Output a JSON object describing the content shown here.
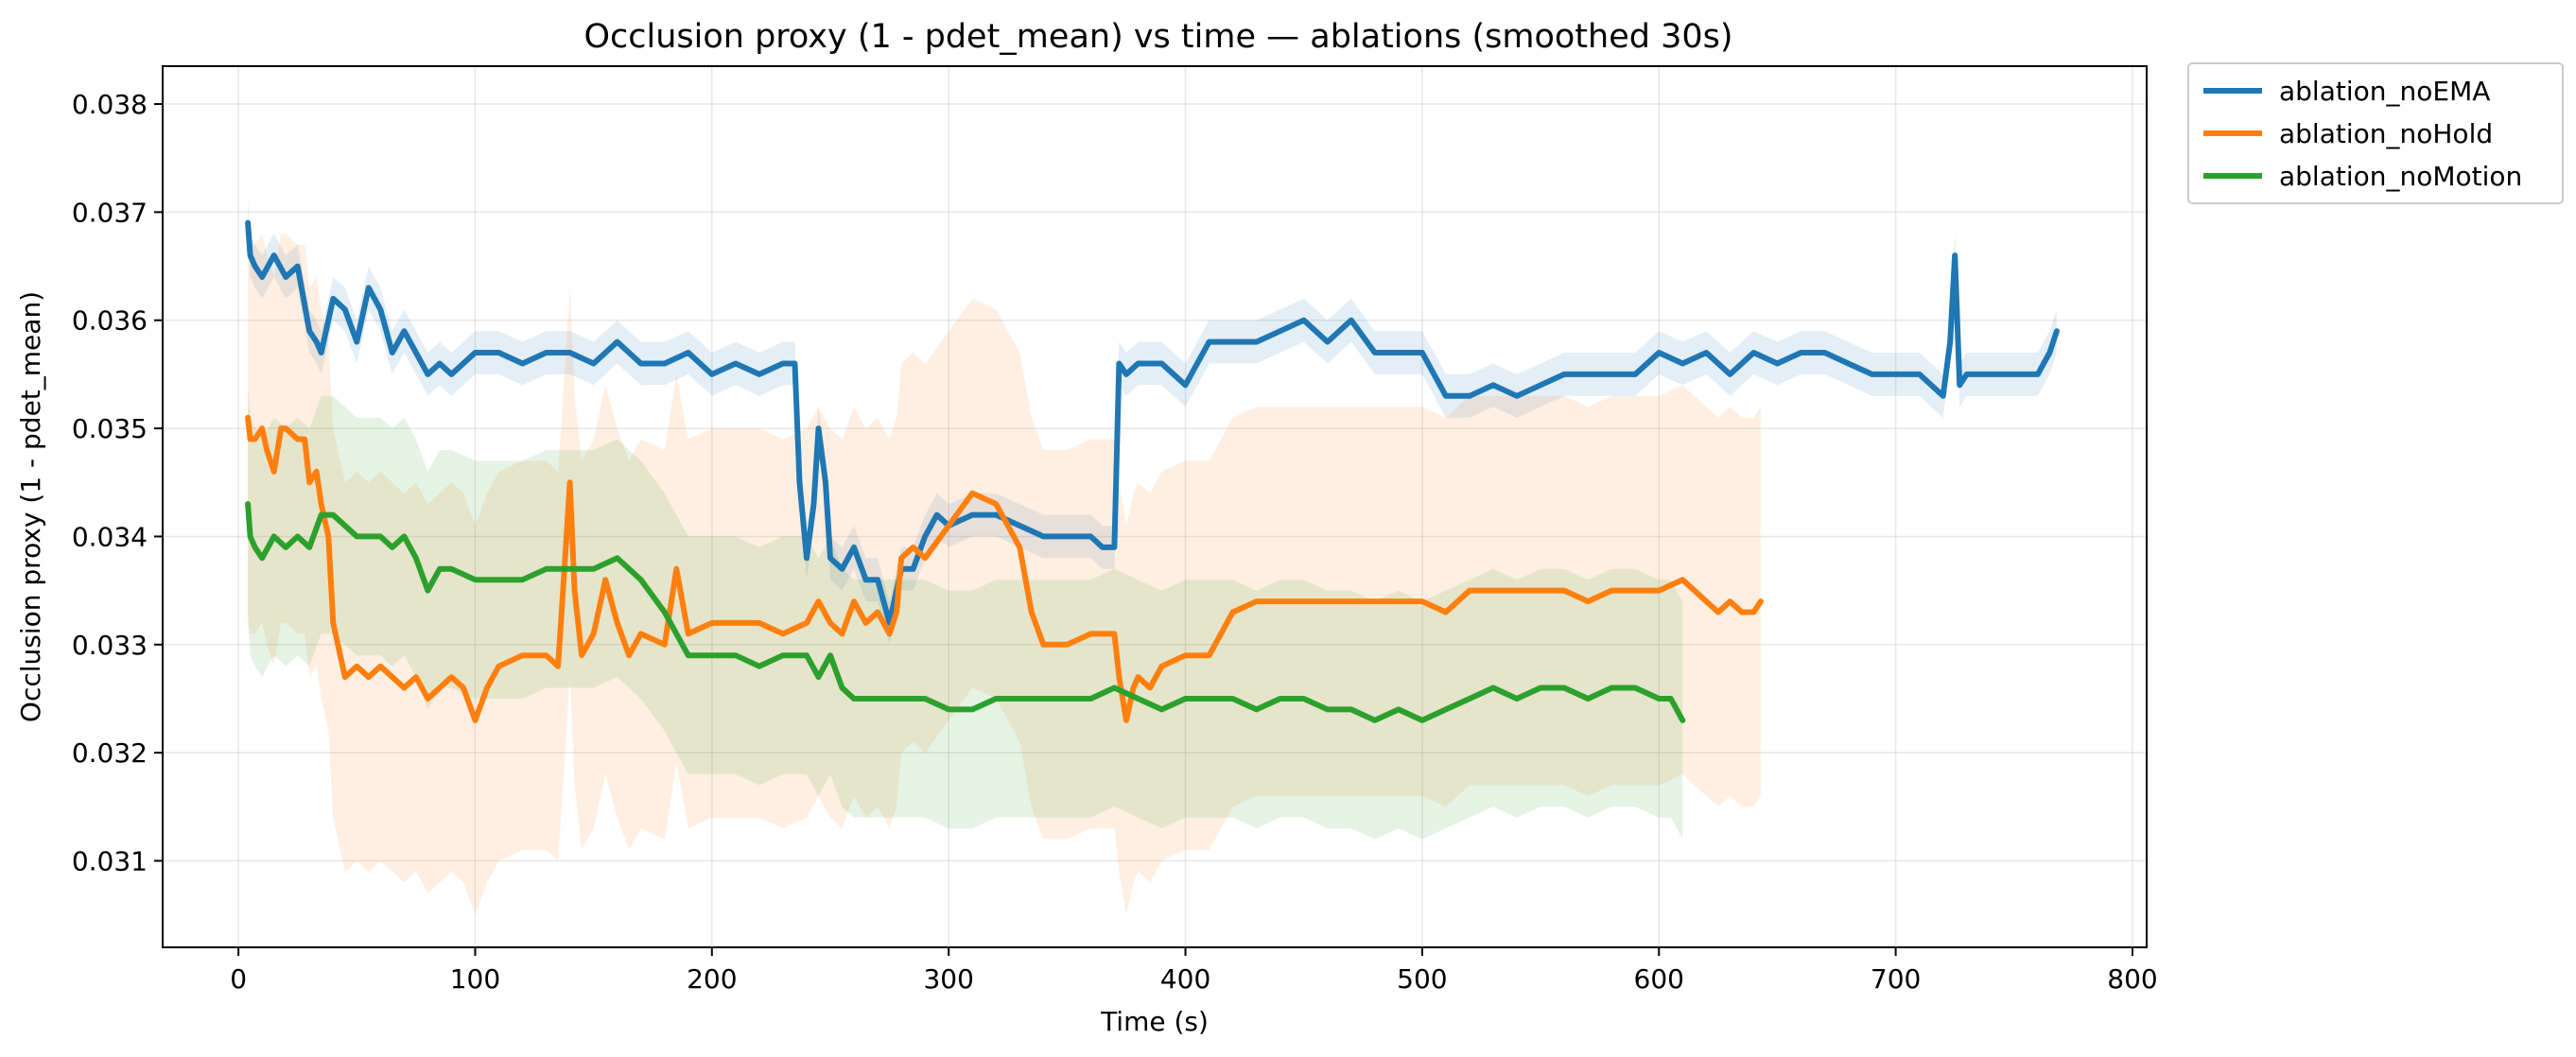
{
  "chart_data": {
    "type": "line",
    "title": "Occlusion proxy (1 - pdet_mean) vs time — ablations (smoothed 30s)",
    "xlabel": "Time (s)",
    "ylabel": "Occlusion proxy (1 - pdet_mean)",
    "xlim": [
      -32,
      806
    ],
    "ylim": [
      0.0302,
      0.03835
    ],
    "xticks": [
      0,
      100,
      200,
      300,
      400,
      500,
      600,
      700,
      800
    ],
    "xtick_labels": [
      "0",
      "100",
      "200",
      "300",
      "400",
      "500",
      "600",
      "700",
      "800"
    ],
    "yticks": [
      0.031,
      0.032,
      0.033,
      0.034,
      0.035,
      0.036,
      0.037,
      0.038
    ],
    "ytick_labels": [
      "0.031",
      "0.032",
      "0.033",
      "0.034",
      "0.035",
      "0.036",
      "0.037",
      "0.038"
    ],
    "grid": true,
    "legend_position": "outside-top-right",
    "series": [
      {
        "name": "ablation_noEMA",
        "color": "#1f77b4",
        "band_halfwidth": 0.0002,
        "x": [
          4,
          5,
          7,
          10,
          15,
          20,
          25,
          30,
          33,
          35,
          40,
          45,
          50,
          55,
          60,
          65,
          70,
          75,
          80,
          85,
          90,
          100,
          110,
          120,
          130,
          140,
          150,
          160,
          170,
          180,
          190,
          200,
          210,
          220,
          230,
          235,
          237,
          240,
          243,
          245,
          248,
          250,
          255,
          260,
          265,
          270,
          275,
          278,
          280,
          285,
          290,
          295,
          300,
          310,
          320,
          330,
          340,
          350,
          360,
          365,
          370,
          372,
          375,
          380,
          390,
          400,
          410,
          420,
          430,
          440,
          450,
          460,
          470,
          480,
          490,
          500,
          505,
          510,
          520,
          530,
          540,
          550,
          560,
          570,
          580,
          590,
          600,
          610,
          620,
          630,
          640,
          650,
          660,
          670,
          680,
          690,
          700,
          710,
          715,
          720,
          723,
          725,
          727,
          730,
          740,
          750,
          760,
          765,
          768
        ],
        "y": [
          0.0369,
          0.0366,
          0.0365,
          0.0364,
          0.0366,
          0.0364,
          0.0365,
          0.0359,
          0.0358,
          0.0357,
          0.0362,
          0.0361,
          0.0358,
          0.0363,
          0.0361,
          0.0357,
          0.0359,
          0.0357,
          0.0355,
          0.0356,
          0.0355,
          0.0357,
          0.0357,
          0.0356,
          0.0357,
          0.0357,
          0.0356,
          0.0358,
          0.0356,
          0.0356,
          0.0357,
          0.0355,
          0.0356,
          0.0355,
          0.0356,
          0.0356,
          0.0345,
          0.0338,
          0.0343,
          0.035,
          0.0345,
          0.0338,
          0.0337,
          0.0339,
          0.0336,
          0.0336,
          0.0332,
          0.0335,
          0.0337,
          0.0337,
          0.034,
          0.0342,
          0.0341,
          0.0342,
          0.0342,
          0.0341,
          0.034,
          0.034,
          0.034,
          0.0339,
          0.0339,
          0.0356,
          0.0355,
          0.0356,
          0.0356,
          0.0354,
          0.0358,
          0.0358,
          0.0358,
          0.0359,
          0.036,
          0.0358,
          0.036,
          0.0357,
          0.0357,
          0.0357,
          0.0355,
          0.0353,
          0.0353,
          0.0354,
          0.0353,
          0.0354,
          0.0355,
          0.0355,
          0.0355,
          0.0355,
          0.0357,
          0.0356,
          0.0357,
          0.0355,
          0.0357,
          0.0356,
          0.0357,
          0.0357,
          0.0356,
          0.0355,
          0.0355,
          0.0355,
          0.0354,
          0.0353,
          0.0358,
          0.0366,
          0.0354,
          0.0355,
          0.0355,
          0.0355,
          0.0355,
          0.0357,
          0.0359
        ]
      },
      {
        "name": "ablation_noHold",
        "color": "#ff7f0e",
        "band_halfwidth": 0.0018,
        "x": [
          4,
          5,
          7,
          10,
          12,
          15,
          18,
          20,
          25,
          28,
          30,
          33,
          35,
          38,
          40,
          45,
          50,
          55,
          60,
          65,
          70,
          75,
          80,
          90,
          95,
          100,
          105,
          110,
          120,
          130,
          135,
          138,
          140,
          142,
          145,
          150,
          155,
          160,
          165,
          170,
          180,
          185,
          190,
          200,
          210,
          220,
          230,
          240,
          245,
          250,
          255,
          260,
          265,
          270,
          275,
          278,
          280,
          285,
          290,
          300,
          310,
          320,
          325,
          330,
          335,
          340,
          350,
          360,
          365,
          370,
          372,
          375,
          378,
          380,
          385,
          390,
          400,
          410,
          415,
          420,
          430,
          440,
          450,
          460,
          470,
          480,
          490,
          500,
          510,
          520,
          530,
          540,
          550,
          560,
          570,
          580,
          590,
          600,
          610,
          615,
          620,
          625,
          630,
          635,
          640,
          643
        ],
        "y": [
          0.0351,
          0.0349,
          0.0349,
          0.035,
          0.0348,
          0.0346,
          0.035,
          0.035,
          0.0349,
          0.0349,
          0.0345,
          0.0346,
          0.0343,
          0.034,
          0.0332,
          0.0327,
          0.0328,
          0.0327,
          0.0328,
          0.0327,
          0.0326,
          0.0327,
          0.0325,
          0.0327,
          0.0326,
          0.0323,
          0.0326,
          0.0328,
          0.0329,
          0.0329,
          0.0328,
          0.0338,
          0.0345,
          0.0335,
          0.0329,
          0.0331,
          0.0336,
          0.0332,
          0.0329,
          0.0331,
          0.033,
          0.0337,
          0.0331,
          0.0332,
          0.0332,
          0.0332,
          0.0331,
          0.0332,
          0.0334,
          0.0332,
          0.0331,
          0.0334,
          0.0332,
          0.0333,
          0.0331,
          0.0333,
          0.0338,
          0.0339,
          0.0338,
          0.0341,
          0.0344,
          0.0343,
          0.0341,
          0.0339,
          0.0333,
          0.033,
          0.033,
          0.0331,
          0.0331,
          0.0331,
          0.0327,
          0.0323,
          0.0326,
          0.0327,
          0.0326,
          0.0328,
          0.0329,
          0.0329,
          0.0331,
          0.0333,
          0.0334,
          0.0334,
          0.0334,
          0.0334,
          0.0334,
          0.0334,
          0.0334,
          0.0334,
          0.0333,
          0.0335,
          0.0335,
          0.0335,
          0.0335,
          0.0335,
          0.0334,
          0.0335,
          0.0335,
          0.0335,
          0.0336,
          0.0335,
          0.0334,
          0.0333,
          0.0334,
          0.0333,
          0.0333,
          0.0334
        ]
      },
      {
        "name": "ablation_noMotion",
        "color": "#2ca02c",
        "band_halfwidth": 0.0011,
        "x": [
          4,
          5,
          7,
          10,
          15,
          20,
          25,
          30,
          35,
          40,
          45,
          50,
          55,
          60,
          65,
          70,
          75,
          80,
          85,
          90,
          100,
          110,
          120,
          130,
          140,
          150,
          160,
          170,
          180,
          185,
          190,
          200,
          210,
          220,
          230,
          235,
          240,
          245,
          250,
          255,
          260,
          270,
          280,
          290,
          300,
          310,
          320,
          330,
          340,
          350,
          360,
          370,
          380,
          390,
          400,
          410,
          420,
          430,
          440,
          450,
          460,
          470,
          480,
          490,
          500,
          510,
          520,
          530,
          540,
          550,
          560,
          570,
          580,
          590,
          600,
          605,
          610
        ],
        "y": [
          0.0343,
          0.034,
          0.0339,
          0.0338,
          0.034,
          0.0339,
          0.034,
          0.0339,
          0.0342,
          0.0342,
          0.0341,
          0.034,
          0.034,
          0.034,
          0.0339,
          0.034,
          0.0338,
          0.0335,
          0.0337,
          0.0337,
          0.0336,
          0.0336,
          0.0336,
          0.0337,
          0.0337,
          0.0337,
          0.0338,
          0.0336,
          0.0333,
          0.0331,
          0.0329,
          0.0329,
          0.0329,
          0.0328,
          0.0329,
          0.0329,
          0.0329,
          0.0327,
          0.0329,
          0.0326,
          0.0325,
          0.0325,
          0.0325,
          0.0325,
          0.0324,
          0.0324,
          0.0325,
          0.0325,
          0.0325,
          0.0325,
          0.0325,
          0.0326,
          0.0325,
          0.0324,
          0.0325,
          0.0325,
          0.0325,
          0.0324,
          0.0325,
          0.0325,
          0.0324,
          0.0324,
          0.0323,
          0.0324,
          0.0323,
          0.0324,
          0.0325,
          0.0326,
          0.0325,
          0.0326,
          0.0326,
          0.0325,
          0.0326,
          0.0326,
          0.0325,
          0.0325,
          0.0323
        ]
      }
    ]
  }
}
